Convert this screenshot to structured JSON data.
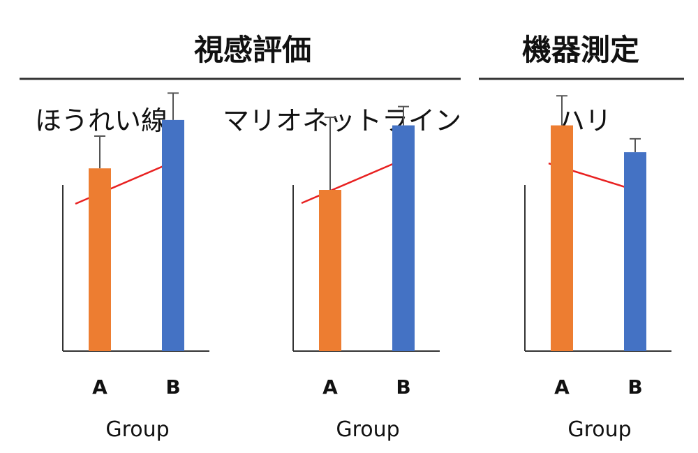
{
  "headers": {
    "left": "視感評価",
    "right": "機器測定"
  },
  "colors": {
    "series_a": "#ED7D31",
    "series_b": "#4472C4",
    "trend_arrow": "#E82020",
    "axis": "#333333",
    "error_bar": "#555555"
  },
  "chart_data": [
    {
      "type": "bar",
      "title": "ほうれい線",
      "categories": [
        "A",
        "B"
      ],
      "values": [
        0.68,
        0.86
      ],
      "errors": [
        0.12,
        0.1
      ],
      "colors": [
        "#ED7D31",
        "#4472C4"
      ],
      "xlabel": "Group",
      "ylabel": "",
      "ylim": [
        0,
        1
      ],
      "trend": "up"
    },
    {
      "type": "bar",
      "title": "マリオネットライン",
      "categories": [
        "A",
        "B"
      ],
      "values": [
        0.6,
        0.84
      ],
      "errors": [
        0.27,
        0.07
      ],
      "colors": [
        "#ED7D31",
        "#4472C4"
      ],
      "xlabel": "Group",
      "ylabel": "",
      "ylim": [
        0,
        1
      ],
      "trend": "up"
    },
    {
      "type": "bar",
      "title": "ハリ",
      "categories": [
        "A",
        "B"
      ],
      "values": [
        0.84,
        0.74
      ],
      "errors": [
        0.11,
        0.05
      ],
      "colors": [
        "#ED7D31",
        "#4472C4"
      ],
      "xlabel": "Group",
      "ylabel": "",
      "ylim": [
        0,
        1
      ],
      "trend": "down"
    }
  ]
}
